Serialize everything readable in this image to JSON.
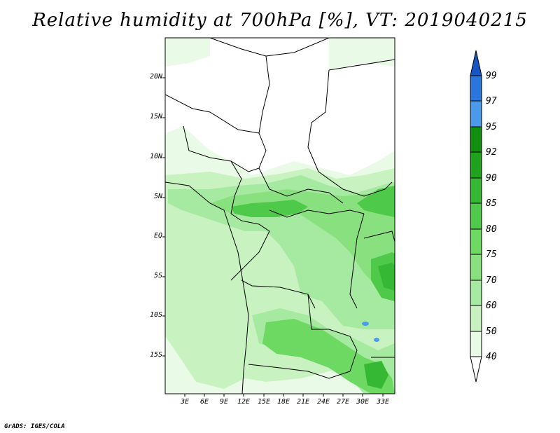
{
  "title": "Relative humidity at 700hPa [%], VT: 2019040215",
  "map": {
    "lat_labels": [
      "20N",
      "15N",
      "10N",
      "5N",
      "EQ",
      "5S",
      "10S",
      "15S"
    ],
    "lon_labels": [
      "3E",
      "6E",
      "9E",
      "12E",
      "15E",
      "18E",
      "21E",
      "24E",
      "27E",
      "30E",
      "33E"
    ]
  },
  "colorbar": {
    "levels": [
      "40",
      "50",
      "60",
      "70",
      "75",
      "80",
      "85",
      "90",
      "92",
      "95",
      "97",
      "99"
    ],
    "colors": [
      "#ffffff",
      "#e9fbe6",
      "#c8f2c0",
      "#a6e9a0",
      "#89e07e",
      "#6dd862",
      "#4fc94a",
      "#35b833",
      "#1fa31e",
      "#119010",
      "#4b9bea",
      "#2a76dc",
      "#1655c2"
    ]
  },
  "credit": "GrADS: IGES/COLA"
}
